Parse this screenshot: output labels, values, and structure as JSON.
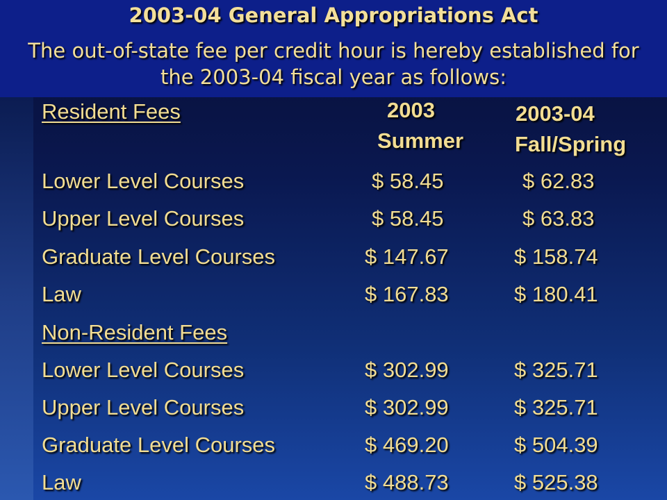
{
  "header": {
    "title": "2003-04 General Appropriations Act",
    "subtitle": "The out-of-state fee per credit hour is hereby established for the 2003-04 fiscal year as follows:"
  },
  "table": {
    "columns": {
      "col1_line1": "2003",
      "col1_line2": "Summer",
      "col2_line1": "2003-04",
      "col2_line2": "Fall/Spring"
    },
    "resident_label": "Resident Fees",
    "resident_rows": [
      {
        "label": "Lower Level Courses",
        "summer": "$ 58.45",
        "fallspring": "$ 62.83"
      },
      {
        "label": "Upper Level Courses",
        "summer": "$ 58.45",
        "fallspring": "$ 63.83"
      },
      {
        "label": "Graduate Level Courses",
        "summer": "$ 147.67",
        "fallspring": "$ 158.74"
      },
      {
        "label": "Law",
        "summer": "$ 167.83",
        "fallspring": "$ 180.41"
      }
    ],
    "nonresident_label": "Non-Resident Fees",
    "nonresident_rows": [
      {
        "label": "Lower Level Courses",
        "summer": "$ 302.99",
        "fallspring": "$ 325.71"
      },
      {
        "label": "Upper Level Courses",
        "summer": "$ 302.99",
        "fallspring": "$ 325.71"
      },
      {
        "label": "Graduate Level Courses",
        "summer": "$ 469.20",
        "fallspring": "$ 504.39"
      },
      {
        "label": "Law",
        "summer": "$ 488.73",
        "fallspring": "$ 525.38"
      }
    ]
  }
}
